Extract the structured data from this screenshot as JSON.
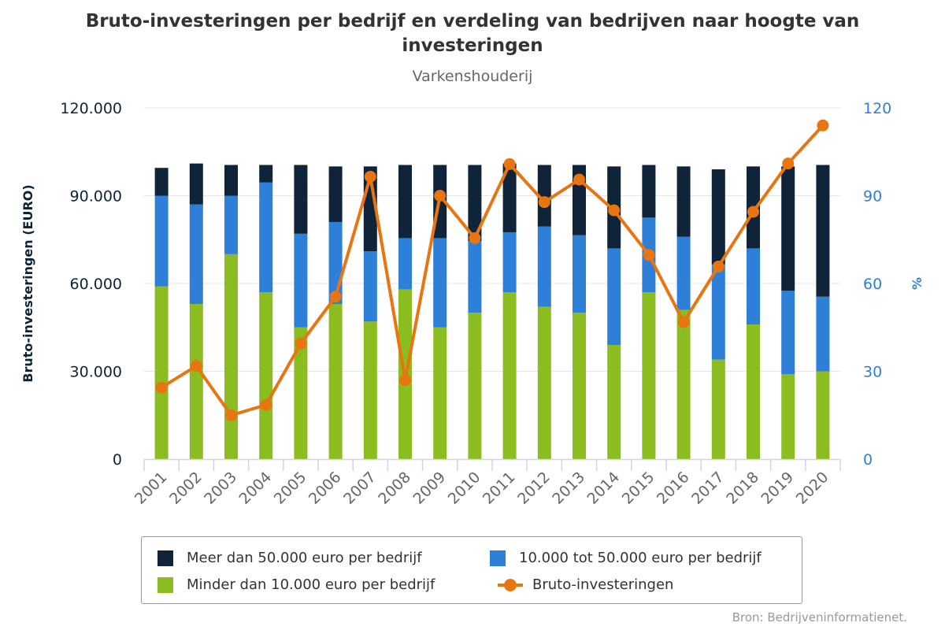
{
  "header": {
    "title": "Bruto-investeringen per bedrijf en verdeling van bedrijven naar hoogte van investeringen",
    "subtitle": "Varkenshouderij"
  },
  "credits": "Bron: Bedrijveninformatienet.",
  "colors": {
    "meer": "#0F2339",
    "tussen": "#2E7FD8",
    "minder": "#8BBD21",
    "line": "#E87511",
    "left_axis_text": "#0F2339",
    "right_axis_text": "#2E7FD8"
  },
  "chart_data": {
    "type": "bar",
    "stacking": "stacked",
    "categories": [
      "2001",
      "2002",
      "2003",
      "2004",
      "2005",
      "2006",
      "2007",
      "2008",
      "2009",
      "2010",
      "2011",
      "2012",
      "2013",
      "2014",
      "2015",
      "2016",
      "2017",
      "2018",
      "2019",
      "2020"
    ],
    "x_tick_labels": [
      "2001",
      "2002",
      "2003",
      "2004",
      "2005",
      "2006",
      "2007",
      "2008",
      "2009",
      "2010",
      "2011",
      "2012",
      "2013",
      "2014",
      "2015",
      "2016",
      "2017",
      "2018",
      "2019",
      "2020"
    ],
    "y_left": {
      "label": "Bruto-investeringen (EURO)",
      "range": [
        0,
        120000
      ],
      "ticks": [
        0,
        30000,
        60000,
        90000,
        120000
      ],
      "tick_labels": [
        "0",
        "30.000",
        "60.000",
        "90.000",
        "120.000"
      ]
    },
    "y_right": {
      "label": "%",
      "range": [
        0,
        120
      ],
      "ticks": [
        0,
        30,
        60,
        90,
        120
      ],
      "tick_labels": [
        "0",
        "30",
        "60",
        "90",
        "120"
      ]
    },
    "grid": true,
    "legend_position": "bottom",
    "series": [
      {
        "name": "Meer dan 50.000 euro per bedrijf",
        "type": "bar",
        "axis": "right",
        "color": "#0F2339",
        "values": [
          9.5,
          14,
          10.5,
          6,
          23.5,
          19,
          29,
          25,
          25,
          26,
          23.5,
          21,
          24,
          28,
          18,
          24,
          32.5,
          28,
          42.5,
          45
        ]
      },
      {
        "name": "10.000 tot 50.000 euro per bedrijf",
        "type": "bar",
        "axis": "right",
        "color": "#2E7FD8",
        "values": [
          31,
          34,
          20,
          37.5,
          32,
          28,
          24,
          17.5,
          30.5,
          24.5,
          20.5,
          27.5,
          26.5,
          33,
          25.5,
          25,
          32.5,
          26,
          28.5,
          25.5
        ]
      },
      {
        "name": "Minder dan 10.000 euro per bedrijf",
        "type": "bar",
        "axis": "right",
        "color": "#8BBD21",
        "values": [
          59,
          53,
          70,
          57,
          45,
          53,
          47,
          58,
          45,
          50,
          57,
          52,
          50,
          39,
          57,
          51,
          34,
          46,
          29,
          30
        ]
      },
      {
        "name": "Bruto-investeringen",
        "type": "line",
        "axis": "left",
        "color": "#E87511",
        "values": [
          24500,
          31800,
          15000,
          18500,
          39500,
          55500,
          96500,
          27000,
          90000,
          75500,
          100800,
          87800,
          95500,
          85000,
          69800,
          46800,
          65800,
          84500,
          101000,
          114000
        ]
      }
    ]
  },
  "legend": {
    "items": [
      {
        "label": "Meer dan 50.000 euro per bedrijf"
      },
      {
        "label": "10.000 tot 50.000 euro per bedrijf"
      },
      {
        "label": "Minder dan 10.000 euro per bedrijf"
      },
      {
        "label": "Bruto-investeringen"
      }
    ]
  }
}
